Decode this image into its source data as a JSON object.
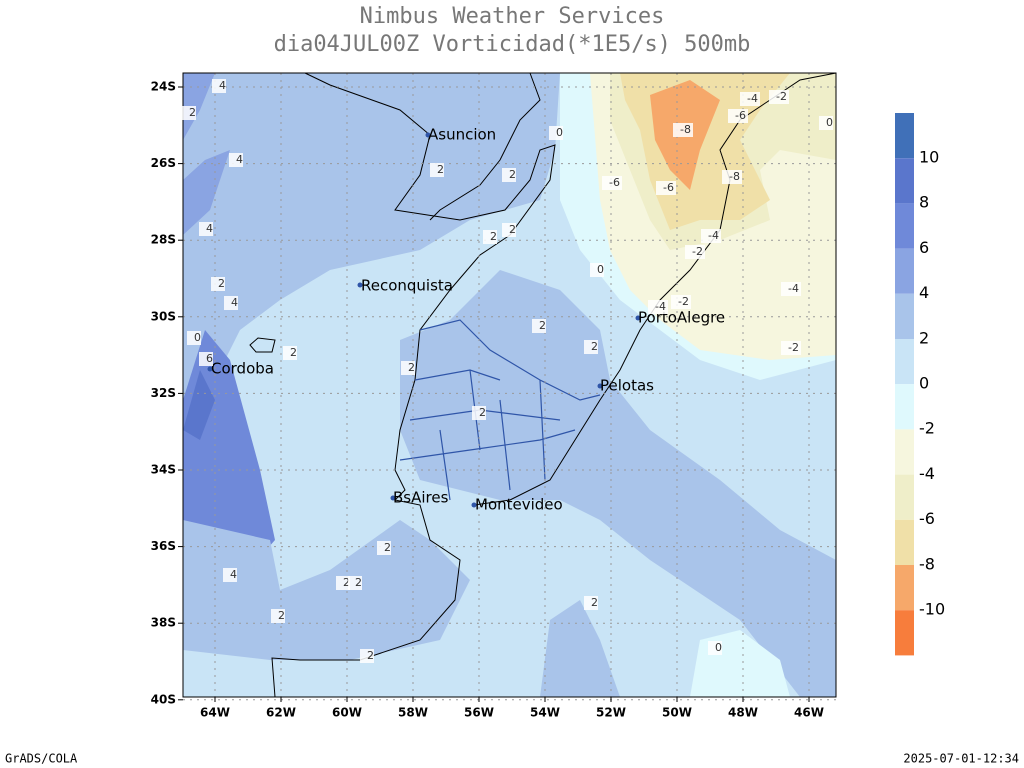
{
  "header": {
    "title": "Nimbus Weather Services",
    "subtitle": "dia04JUL00Z Vorticidad(*1E5/s) 500mb"
  },
  "axes": {
    "lat_labels": [
      "24S",
      "26S",
      "28S",
      "30S",
      "32S",
      "34S",
      "36S",
      "38S",
      "40S"
    ],
    "lon_labels": [
      "64W",
      "62W",
      "60W",
      "58W",
      "56W",
      "54W",
      "52W",
      "50W",
      "48W",
      "46W"
    ]
  },
  "cities": [
    "Asuncion",
    "Reconquista",
    "Cordoba",
    "PortoAlegre",
    "Pelotas",
    "BsAires",
    "Montevideo"
  ],
  "contour_labels": [
    "4",
    "2",
    "4",
    "4",
    "2",
    "4",
    "6",
    "0",
    "2",
    "2",
    "2",
    "2",
    "2",
    "2",
    "2",
    "2",
    "2",
    "4",
    "2",
    "2",
    "2",
    "2",
    "2",
    "2",
    "0",
    "0",
    "0",
    "-8",
    "-6",
    "-6",
    "-8",
    "-4",
    "-2",
    "-4",
    "-6",
    "-4",
    "-2",
    "-4",
    "-2",
    "-2",
    "0"
  ],
  "colorbar": {
    "labels": [
      10,
      8,
      6,
      4,
      2,
      0,
      -2,
      -4,
      -6,
      -8,
      -10
    ],
    "colors": [
      "#4070b8",
      "#5a76cc",
      "#6f89d9",
      "#8aa4e2",
      "#a9c4ea",
      "#c9e4f6",
      "#dff9fd",
      "#f6f6de",
      "#efeec9",
      "#f0e0a8",
      "#f6a86a",
      "#f77d3c"
    ]
  },
  "footer": {
    "left": "GrADS/COLA",
    "right": "2025-07-01-12:34"
  }
}
